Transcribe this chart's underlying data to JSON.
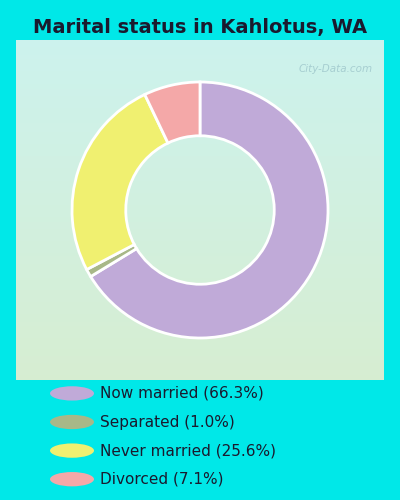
{
  "title": "Marital status in Kahlotus, WA",
  "slices": [
    66.3,
    1.0,
    25.6,
    7.1
  ],
  "labels": [
    "Now married (66.3%)",
    "Separated (1.0%)",
    "Never married (25.6%)",
    "Divorced (7.1%)"
  ],
  "colors": [
    "#c0aad8",
    "#a8b888",
    "#f0f070",
    "#f4a8a8"
  ],
  "cyan_bg": "#00e8e8",
  "chart_bg_tl": [
    0.8,
    0.95,
    0.93
  ],
  "chart_bg_br": [
    0.84,
    0.93,
    0.82
  ],
  "title_fontsize": 14,
  "legend_fontsize": 11,
  "watermark": "City-Data.com",
  "startangle": 90,
  "donut_width": 0.42
}
